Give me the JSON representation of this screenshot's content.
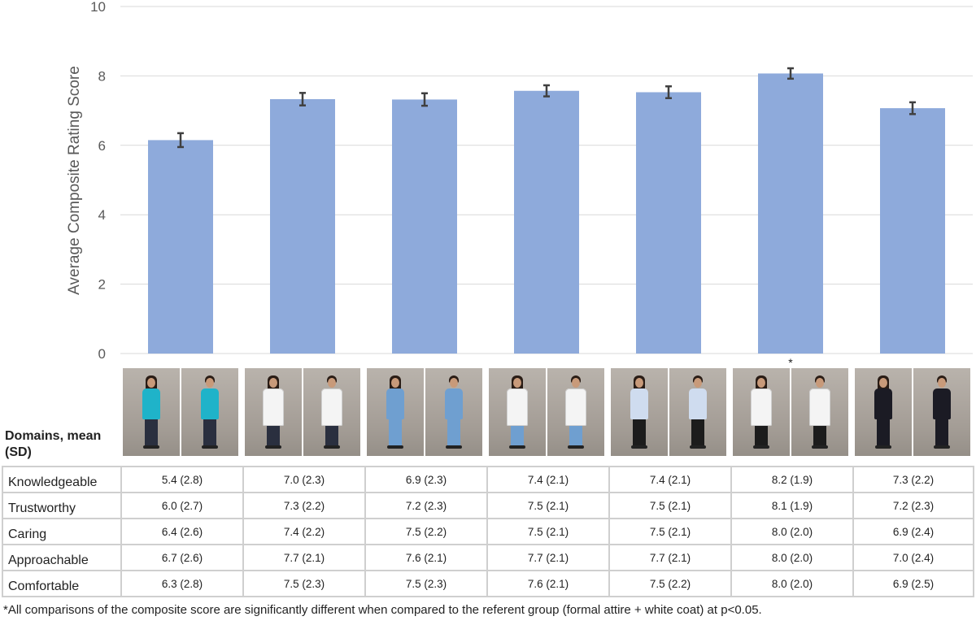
{
  "chart_data": {
    "type": "bar",
    "ylabel": "Average Composite Rating Score",
    "xlabel": "",
    "ylim": [
      0,
      10
    ],
    "yticks": [
      0,
      2,
      4,
      6,
      8,
      10
    ],
    "categories": [
      "Casual",
      "Casual + white coat",
      "Scrubs",
      "Scrubs + white coat",
      "Business",
      "Business + white coat",
      "Formal"
    ],
    "values": [
      6.15,
      7.33,
      7.32,
      7.57,
      7.53,
      8.07,
      7.07
    ],
    "error": [
      0.2,
      0.18,
      0.18,
      0.16,
      0.17,
      0.15,
      0.17
    ],
    "significance_marker": "*",
    "significance_index": 5,
    "bar_color": "#8eaadb",
    "error_color": "#404040",
    "grid": true
  },
  "table": {
    "header_label": "Domains, mean (SD)",
    "rows": [
      {
        "label": "Knowledgeable",
        "values": [
          "5.4 (2.8)",
          "7.0 (2.3)",
          "6.9 (2.3)",
          "7.4 (2.1)",
          "7.4 (2.1)",
          "8.2 (1.9)",
          "7.3 (2.2)"
        ]
      },
      {
        "label": "Trustworthy",
        "values": [
          "6.0 (2.7)",
          "7.3 (2.2)",
          "7.2 (2.3)",
          "7.5 (2.1)",
          "7.5 (2.1)",
          "8.1 (1.9)",
          "7.2 (2.3)"
        ]
      },
      {
        "label": "Caring",
        "values": [
          "6.4 (2.6)",
          "7.4 (2.2)",
          "7.5 (2.2)",
          "7.5 (2.1)",
          "7.5 (2.1)",
          "8.0 (2.0)",
          "6.9 (2.4)"
        ]
      },
      {
        "label": "Approachable",
        "values": [
          "6.7 (2.6)",
          "7.7 (2.1)",
          "7.6 (2.1)",
          "7.7 (2.1)",
          "7.7 (2.1)",
          "8.0 (2.0)",
          "7.0 (2.4)"
        ]
      },
      {
        "label": "Comfortable",
        "values": [
          "6.3 (2.8)",
          "7.5 (2.3)",
          "7.5 (2.3)",
          "7.6 (2.1)",
          "7.5 (2.2)",
          "8.0 (2.0)",
          "6.9 (2.5)"
        ]
      }
    ]
  },
  "photos": [
    {
      "attire": "casual",
      "top": "#1fb3c9",
      "bottom": "#2a2f3f",
      "coat": false
    },
    {
      "attire": "casual + white coat",
      "top": "#f4f4f4",
      "bottom": "#2a2f3f",
      "coat": true
    },
    {
      "attire": "scrubs",
      "top": "#6f9fd0",
      "bottom": "#6f9fd0",
      "coat": false
    },
    {
      "attire": "scrubs + white coat",
      "top": "#f4f4f4",
      "bottom": "#6f9fd0",
      "coat": true
    },
    {
      "attire": "business",
      "top": "#cfdcef",
      "bottom": "#1c1c1c",
      "coat": false
    },
    {
      "attire": "business + white coat",
      "top": "#f4f4f4",
      "bottom": "#1c1c1c",
      "coat": true
    },
    {
      "attire": "formal",
      "top": "#1b1b24",
      "bottom": "#1b1b24",
      "coat": false
    }
  ],
  "footnote": "*All comparisons of the composite score are significantly different when compared to the referent group (formal attire + white coat) at p<0.05."
}
